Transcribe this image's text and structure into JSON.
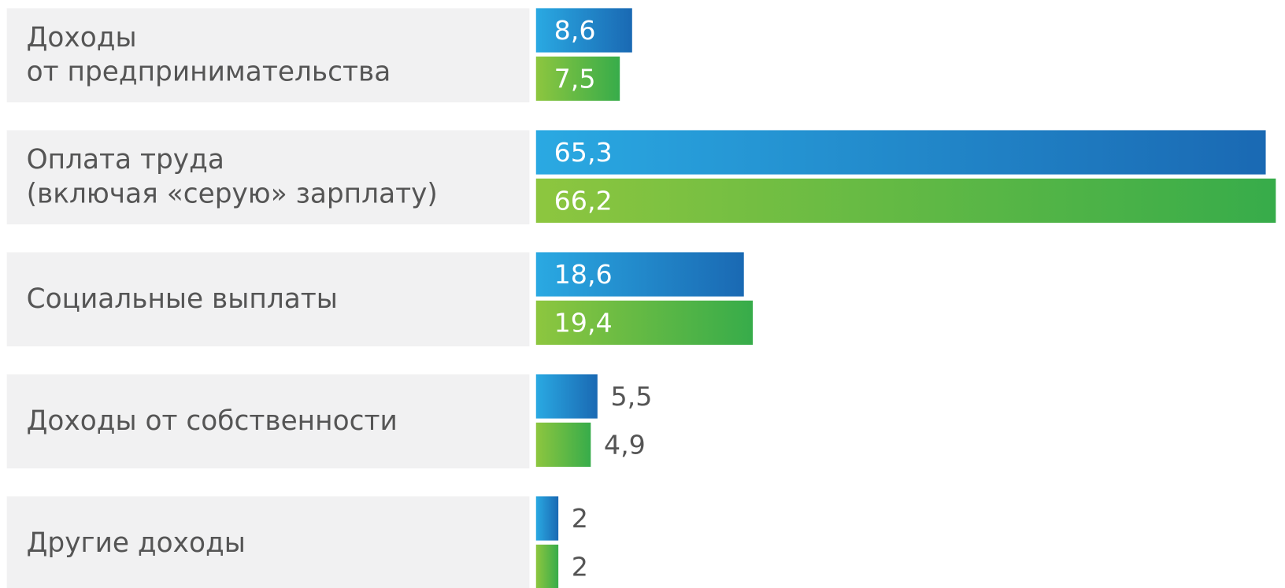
{
  "chart_data": {
    "type": "bar",
    "orientation": "horizontal",
    "categories": [
      "Доходы\nот предпринимательства",
      "Оплата труда\n(включая «серую» зарплату)",
      "Социальные выплаты",
      "Доходы от собственности",
      "Другие доходы"
    ],
    "series": [
      {
        "color": [
          "#2aa9e2",
          "#1a69b3"
        ],
        "values": [
          8.6,
          65.3,
          18.6,
          5.5,
          2
        ],
        "value_labels": [
          "8,6",
          "65,3",
          "18,6",
          "5,5",
          "2"
        ]
      },
      {
        "color": [
          "#8dc63f",
          "#37ac4a"
        ],
        "values": [
          7.5,
          66.2,
          19.4,
          4.9,
          2
        ],
        "value_labels": [
          "7,5",
          "66,2",
          "19,4",
          "4,9",
          "2"
        ]
      }
    ],
    "xlim": [
      0,
      67
    ]
  }
}
